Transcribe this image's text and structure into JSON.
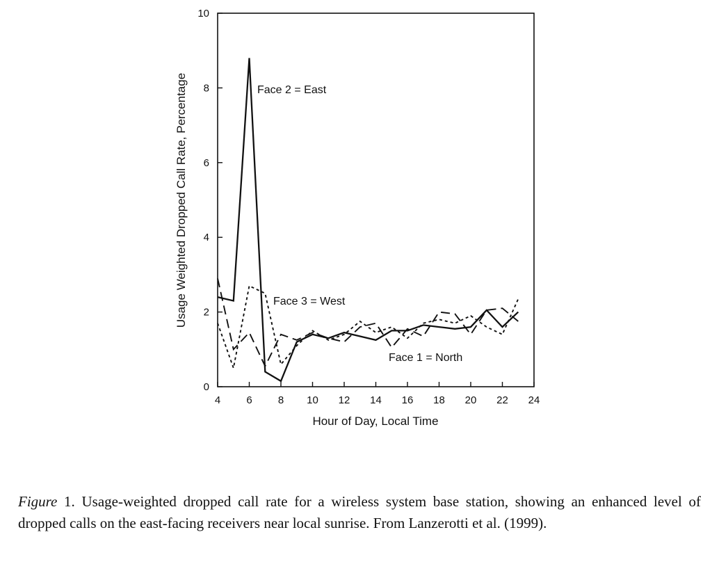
{
  "chart_data": {
    "type": "line",
    "title": "",
    "xlabel": "Hour of Day, Local Time",
    "ylabel": "Usage Weighted Dropped Call Rate, Percentage",
    "xlim": [
      4,
      24
    ],
    "ylim": [
      0,
      10
    ],
    "x_ticks": [
      "4",
      "6",
      "8",
      "10",
      "12",
      "14",
      "16",
      "18",
      "20",
      "22",
      "24"
    ],
    "y_ticks": [
      "0",
      "2",
      "4",
      "6",
      "8",
      "10"
    ],
    "grid": false,
    "series": [
      {
        "name": "Face 2 = East",
        "style": "solid",
        "x": [
          4,
          5,
          6,
          7,
          8,
          9,
          10,
          11,
          12,
          13,
          14,
          15,
          16,
          17,
          18,
          19,
          20,
          21,
          22,
          23
        ],
        "values": [
          2.4,
          2.3,
          8.8,
          0.4,
          0.15,
          1.2,
          1.4,
          1.3,
          1.45,
          1.35,
          1.25,
          1.5,
          1.5,
          1.65,
          1.6,
          1.55,
          1.6,
          2.05,
          1.6,
          2.0
        ]
      },
      {
        "name": "Face 3 = West",
        "style": "dotted",
        "x": [
          4,
          5,
          6,
          7,
          8,
          9,
          10,
          11,
          12,
          13,
          14,
          15,
          16,
          17,
          18,
          19,
          20,
          21,
          22,
          23
        ],
        "values": [
          1.7,
          0.5,
          2.7,
          2.5,
          0.6,
          1.1,
          1.5,
          1.25,
          1.4,
          1.75,
          1.45,
          1.6,
          1.3,
          1.7,
          1.8,
          1.7,
          1.9,
          1.6,
          1.4,
          2.35
        ]
      },
      {
        "name": "Face 1 = North",
        "style": "dashed",
        "x": [
          4,
          5,
          6,
          7,
          8,
          9,
          10,
          11,
          12,
          13,
          14,
          15,
          16,
          17,
          18,
          19,
          20,
          21,
          22,
          23
        ],
        "values": [
          2.9,
          1.0,
          1.45,
          0.55,
          1.4,
          1.25,
          1.45,
          1.3,
          1.2,
          1.6,
          1.7,
          1.05,
          1.55,
          1.35,
          2.0,
          1.95,
          1.4,
          2.05,
          2.1,
          1.75
        ]
      }
    ]
  },
  "caption": {
    "figure_label": "Figure",
    "text": " 1. Usage-weighted dropped call rate for a wireless system base station, showing an enhanced level of dropped calls on the east-facing receivers near local sunrise. From Lanzerotti et al. (1999)."
  },
  "colors": {
    "ink": "#111111",
    "background": "#ffffff"
  }
}
